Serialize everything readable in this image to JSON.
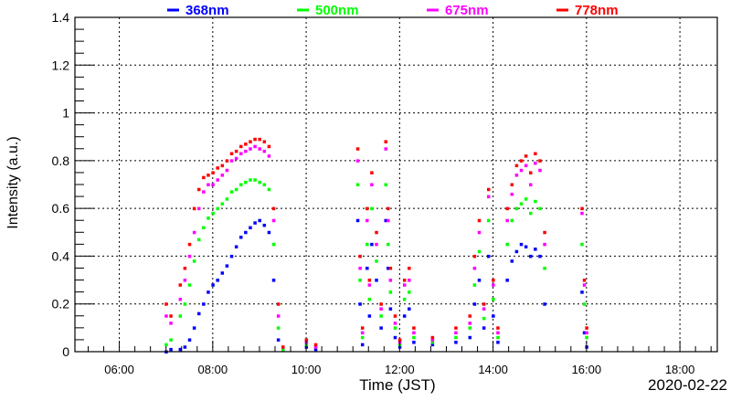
{
  "chart_data": {
    "type": "scatter",
    "title": "",
    "xlabel": "Time (JST)",
    "ylabel": "Intensity (a.u.)",
    "date_label": "2020-02-22",
    "xlim": [
      5.05,
      18.8
    ],
    "ylim": [
      0,
      1.4
    ],
    "grid": true,
    "legend_placement": "top",
    "x_ticks": [
      6,
      8,
      10,
      12,
      14,
      16,
      18
    ],
    "x_tick_labels": [
      "06:00",
      "08:00",
      "10:00",
      "12:00",
      "14:00",
      "16:00",
      "18:00"
    ],
    "y_ticks": [
      0,
      0.2,
      0.4,
      0.6,
      0.8,
      1,
      1.2,
      1.4
    ],
    "y_tick_labels": [
      "0",
      "0.2",
      "0.4",
      "0.6",
      "0.8",
      "1",
      "1.2",
      "1.4"
    ],
    "x": [
      7.0,
      7.1,
      7.3,
      7.4,
      7.5,
      7.6,
      7.7,
      7.8,
      7.9,
      8.0,
      8.1,
      8.2,
      8.3,
      8.4,
      8.5,
      8.6,
      8.7,
      8.8,
      8.9,
      9.0,
      9.1,
      9.2,
      9.3,
      9.4,
      9.5,
      10.0,
      10.2,
      11.1,
      11.15,
      11.2,
      11.3,
      11.35,
      11.4,
      11.5,
      11.6,
      11.7,
      11.75,
      11.8,
      11.9,
      12.0,
      12.1,
      12.2,
      12.3,
      12.7,
      13.2,
      13.5,
      13.6,
      13.7,
      13.8,
      13.9,
      14.0,
      14.1,
      14.3,
      14.4,
      14.5,
      14.6,
      14.7,
      14.8,
      14.9,
      15.0,
      15.1,
      15.9,
      15.95,
      16.0
    ],
    "series": [
      {
        "name": "368nm",
        "color": "#0000ff",
        "values": [
          0.0,
          0.01,
          0.01,
          0.02,
          0.05,
          0.1,
          0.16,
          0.2,
          0.25,
          0.28,
          0.3,
          0.33,
          0.36,
          0.4,
          0.44,
          0.48,
          0.5,
          0.52,
          0.54,
          0.55,
          0.53,
          0.5,
          0.3,
          0.05,
          0.01,
          0.02,
          0.01,
          0.55,
          0.2,
          0.03,
          0.35,
          0.15,
          0.45,
          0.3,
          0.1,
          0.55,
          0.35,
          0.18,
          0.06,
          0.02,
          0.15,
          0.18,
          0.04,
          0.03,
          0.04,
          0.06,
          0.2,
          0.3,
          0.1,
          0.4,
          0.15,
          0.04,
          0.3,
          0.38,
          0.42,
          0.45,
          0.44,
          0.4,
          0.43,
          0.4,
          0.2,
          0.25,
          0.08,
          0.02
        ]
      },
      {
        "name": "500nm",
        "color": "#00ff00",
        "values": [
          0.03,
          0.05,
          0.15,
          0.2,
          0.28,
          0.38,
          0.47,
          0.52,
          0.56,
          0.58,
          0.6,
          0.62,
          0.64,
          0.67,
          0.68,
          0.7,
          0.71,
          0.72,
          0.72,
          0.71,
          0.7,
          0.68,
          0.45,
          0.1,
          0.01,
          0.03,
          0.02,
          0.7,
          0.3,
          0.06,
          0.45,
          0.22,
          0.6,
          0.38,
          0.15,
          0.7,
          0.45,
          0.25,
          0.1,
          0.03,
          0.22,
          0.25,
          0.06,
          0.04,
          0.06,
          0.1,
          0.28,
          0.42,
          0.14,
          0.55,
          0.22,
          0.06,
          0.45,
          0.55,
          0.6,
          0.62,
          0.64,
          0.58,
          0.63,
          0.6,
          0.35,
          0.45,
          0.2,
          0.06
        ]
      },
      {
        "name": "675nm",
        "color": "#ff00ff",
        "values": [
          0.15,
          0.12,
          0.22,
          0.3,
          0.4,
          0.5,
          0.6,
          0.67,
          0.7,
          0.7,
          0.72,
          0.74,
          0.76,
          0.8,
          0.81,
          0.83,
          0.84,
          0.85,
          0.86,
          0.85,
          0.84,
          0.82,
          0.55,
          0.15,
          0.02,
          0.04,
          0.02,
          0.8,
          0.35,
          0.08,
          0.55,
          0.28,
          0.7,
          0.45,
          0.18,
          0.85,
          0.55,
          0.3,
          0.12,
          0.04,
          0.28,
          0.3,
          0.08,
          0.05,
          0.08,
          0.12,
          0.35,
          0.5,
          0.18,
          0.65,
          0.28,
          0.08,
          0.55,
          0.66,
          0.74,
          0.76,
          0.78,
          0.7,
          0.79,
          0.76,
          0.45,
          0.58,
          0.28,
          0.08
        ]
      },
      {
        "name": "778nm",
        "color": "#ff0000",
        "values": [
          0.2,
          0.15,
          0.28,
          0.35,
          0.45,
          0.6,
          0.68,
          0.73,
          0.74,
          0.75,
          0.77,
          0.78,
          0.8,
          0.83,
          0.84,
          0.86,
          0.87,
          0.88,
          0.89,
          0.89,
          0.88,
          0.86,
          0.6,
          0.2,
          0.02,
          0.05,
          0.03,
          0.85,
          0.4,
          0.1,
          0.6,
          0.3,
          0.75,
          0.5,
          0.2,
          0.88,
          0.6,
          0.35,
          0.15,
          0.05,
          0.3,
          0.35,
          0.1,
          0.06,
          0.1,
          0.15,
          0.4,
          0.55,
          0.2,
          0.68,
          0.3,
          0.1,
          0.6,
          0.7,
          0.78,
          0.8,
          0.82,
          0.75,
          0.83,
          0.8,
          0.5,
          0.6,
          0.3,
          0.1
        ]
      }
    ]
  }
}
